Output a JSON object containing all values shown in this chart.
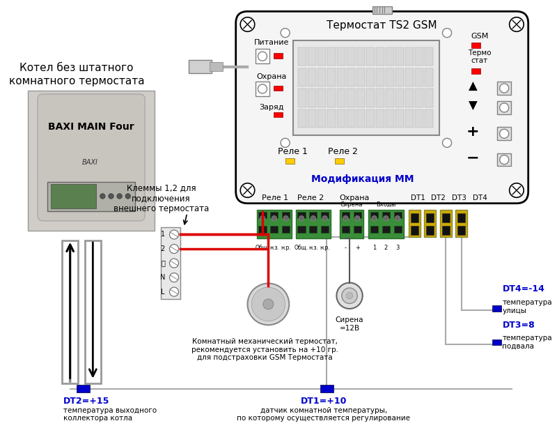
{
  "bg_color": "#ffffff",
  "title_text": "Термостат TS2 GSM",
  "mod_text": "Модификация ММ",
  "boiler_label1": "Котел без штатного",
  "boiler_label2": "комнатного термостата",
  "boiler_name": "BAXI MAIN Four",
  "relay_label1": "Реле 1",
  "relay_label2": "Реле 2",
  "relay_bottom1": "Реле 1",
  "relay_bottom2": "Реле 2",
  "ohrana_label": "Охрана",
  "pitanie_label": "Питание",
  "ohrana2_label": "Охрана",
  "zaryd_label": "Заряд",
  "gsm_label": "GSM",
  "termo_label": "Термо\nстат",
  "dt_labels": [
    "DT1",
    "DT2",
    "DT3",
    "DT4"
  ],
  "klemmy_text": "Клеммы 1,2 для\nподключения\nвнешнего термостата",
  "sirena_label": "Сирена\n=12В",
  "mech_thermo_text": "Комнатный механический термостат,\nрекомендуется установить на +10 гр.\nдля подстраховки GSM Термостата",
  "dt1_text": "DT1=+10",
  "dt1_desc": "датчик комнатной температуры,\nпо которому осуществляется регулирование",
  "dt2_text": "DT2=+15",
  "dt2_desc": "температура выходного\nколлектора котла",
  "dt3_text": "DT3=8",
  "dt3_desc": "температура\nподвала",
  "dt4_text": "DT4=-14",
  "dt4_desc": "температура\nулицы",
  "blue_color": "#0000cc",
  "red_color": "#cc0000",
  "connector_color": "#4a9e4a",
  "yellow_connector_color": "#ccaa00"
}
